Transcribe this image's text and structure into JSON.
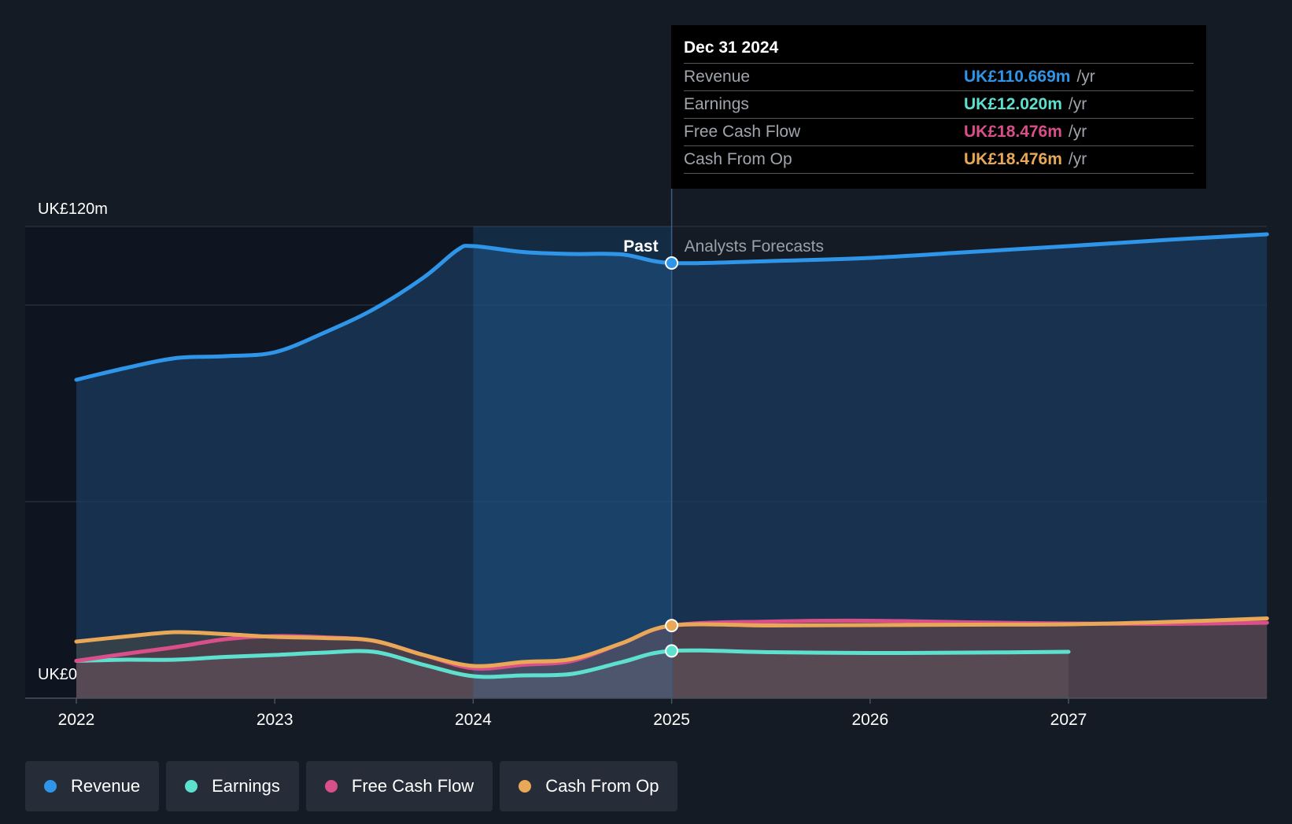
{
  "chart_data": {
    "type": "area",
    "title": "",
    "y_axis": {
      "top_label": "UK£120m",
      "bottom_label": "UK£0",
      "ylim": [
        0,
        120
      ]
    },
    "x_axis": {
      "tick_labels": [
        "2022",
        "2023",
        "2024",
        "2025",
        "2026",
        "2027"
      ],
      "xlim": [
        2022.0,
        2028.0
      ]
    },
    "divider": {
      "past_label": "Past",
      "forecast_label": "Analysts Forecasts",
      "x": 2025.0
    },
    "series": [
      {
        "name": "Revenue",
        "color": "#2f95e8",
        "points": [
          [
            2022.0,
            81
          ],
          [
            2022.25,
            84
          ],
          [
            2022.5,
            86.5
          ],
          [
            2022.75,
            87
          ],
          [
            2023.0,
            88
          ],
          [
            2023.25,
            93
          ],
          [
            2023.5,
            99
          ],
          [
            2023.75,
            107
          ],
          [
            2023.92,
            114
          ],
          [
            2024.0,
            115
          ],
          [
            2024.25,
            113.5
          ],
          [
            2024.5,
            113
          ],
          [
            2024.75,
            112.9
          ],
          [
            2025.0,
            110.7
          ],
          [
            2025.5,
            111.2
          ],
          [
            2026.0,
            112
          ],
          [
            2026.5,
            113.5
          ],
          [
            2027.0,
            115
          ],
          [
            2027.5,
            116.6
          ],
          [
            2028.0,
            118
          ]
        ]
      },
      {
        "name": "Earnings",
        "color": "#5ee0cf",
        "points": [
          [
            2022.0,
            9.5
          ],
          [
            2022.25,
            9.8
          ],
          [
            2022.5,
            9.8
          ],
          [
            2022.75,
            10.5
          ],
          [
            2023.0,
            11
          ],
          [
            2023.25,
            11.6
          ],
          [
            2023.5,
            11.8
          ],
          [
            2023.75,
            8.5
          ],
          [
            2024.0,
            5.6
          ],
          [
            2024.25,
            5.8
          ],
          [
            2024.5,
            6.2
          ],
          [
            2024.75,
            9.2
          ],
          [
            2025.0,
            12.02
          ],
          [
            2025.5,
            11.7
          ],
          [
            2026.0,
            11.5
          ],
          [
            2026.5,
            11.6
          ],
          [
            2027.0,
            11.8
          ]
        ]
      },
      {
        "name": "Free Cash Flow",
        "color": "#d94f8a",
        "points": [
          [
            2022.0,
            9.5
          ],
          [
            2022.25,
            11.3
          ],
          [
            2022.5,
            13
          ],
          [
            2022.75,
            15
          ],
          [
            2023.0,
            15.8
          ],
          [
            2023.25,
            15.5
          ],
          [
            2023.5,
            14.6
          ],
          [
            2023.75,
            11
          ],
          [
            2024.0,
            7.6
          ],
          [
            2024.25,
            8.5
          ],
          [
            2024.5,
            9.5
          ],
          [
            2024.75,
            14
          ],
          [
            2025.0,
            18.476
          ],
          [
            2025.5,
            19.5
          ],
          [
            2026.0,
            19.7
          ],
          [
            2026.5,
            19.3
          ],
          [
            2027.0,
            19.0
          ],
          [
            2027.5,
            18.9
          ],
          [
            2028.0,
            19.2
          ]
        ]
      },
      {
        "name": "Cash From Op",
        "color": "#e8a857",
        "points": [
          [
            2022.0,
            14.4
          ],
          [
            2022.25,
            15.7
          ],
          [
            2022.5,
            16.8
          ],
          [
            2022.75,
            16.3
          ],
          [
            2023.0,
            15.6
          ],
          [
            2023.25,
            15.3
          ],
          [
            2023.5,
            14.6
          ],
          [
            2023.75,
            11
          ],
          [
            2024.0,
            8.2
          ],
          [
            2024.25,
            9.2
          ],
          [
            2024.5,
            10
          ],
          [
            2024.75,
            14
          ],
          [
            2025.0,
            18.476
          ],
          [
            2025.5,
            18.5
          ],
          [
            2026.0,
            18.6
          ],
          [
            2026.5,
            18.7
          ],
          [
            2027.0,
            18.8
          ],
          [
            2027.5,
            19.4
          ],
          [
            2028.0,
            20.3
          ]
        ]
      }
    ]
  },
  "tooltip": {
    "date": "Dec 31 2024",
    "rows": [
      {
        "label": "Revenue",
        "value": "UK£110.669m",
        "unit": "/yr",
        "color": "#2f95e8"
      },
      {
        "label": "Earnings",
        "value": "UK£12.020m",
        "unit": "/yr",
        "color": "#5ee0cf"
      },
      {
        "label": "Free Cash Flow",
        "value": "UK£18.476m",
        "unit": "/yr",
        "color": "#d94f8a"
      },
      {
        "label": "Cash From Op",
        "value": "UK£18.476m",
        "unit": "/yr",
        "color": "#e8a857"
      }
    ]
  },
  "legend": [
    {
      "label": "Revenue",
      "color": "#2f95e8"
    },
    {
      "label": "Earnings",
      "color": "#5ee0cf"
    },
    {
      "label": "Free Cash Flow",
      "color": "#d94f8a"
    },
    {
      "label": "Cash From Op",
      "color": "#e8a857"
    }
  ]
}
